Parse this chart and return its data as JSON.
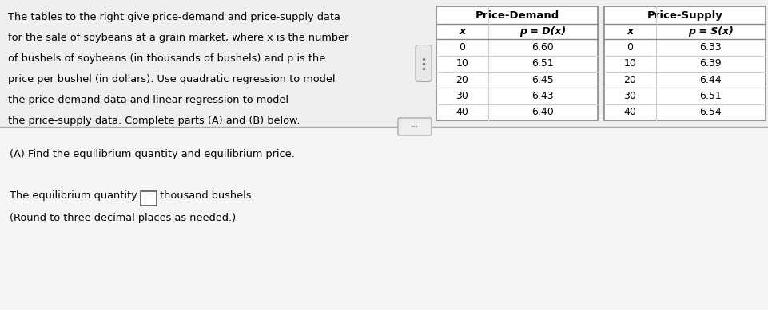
{
  "paragraph_text": [
    "The tables to the right give price-demand and price-supply data",
    "for the sale of soybeans at a grain market, where x is the number",
    "of bushels of soybeans (in thousands of bushels) and p is the",
    "price per bushel (in dollars). Use quadratic regression to model",
    "the price-demand data and linear regression to model",
    "the price-supply data. Complete parts (A) and (B) below."
  ],
  "demand_data": [
    [
      0,
      6.6
    ],
    [
      10,
      6.51
    ],
    [
      20,
      6.45
    ],
    [
      30,
      6.43
    ],
    [
      40,
      6.4
    ]
  ],
  "supply_data": [
    [
      0,
      6.33
    ],
    [
      10,
      6.39
    ],
    [
      20,
      6.44
    ],
    [
      30,
      6.51
    ],
    [
      40,
      6.54
    ]
  ],
  "demand_title": "Price-Demand",
  "supply_title": "Price-Supply",
  "demand_col1": "x",
  "demand_col2": "p = D(x)",
  "supply_col1": "x",
  "supply_col2": "p = S(x)",
  "section_a_text": "(A) Find the equilibrium quantity and equilibrium price.",
  "answer_line1": "The equilibrium quantity is ",
  "answer_line2": "thousand bushels.",
  "answer_line3": "(Round to three decimal places as needed.)",
  "upper_bg": "#f0efef",
  "lower_bg": "#f5f5f5",
  "table_bg": "#ffffff",
  "text_color": "#000000",
  "divider_color": "#aaaaaa",
  "table_border_color": "#888888",
  "table_inner_color": "#cccccc",
  "dots_color": "#777777"
}
